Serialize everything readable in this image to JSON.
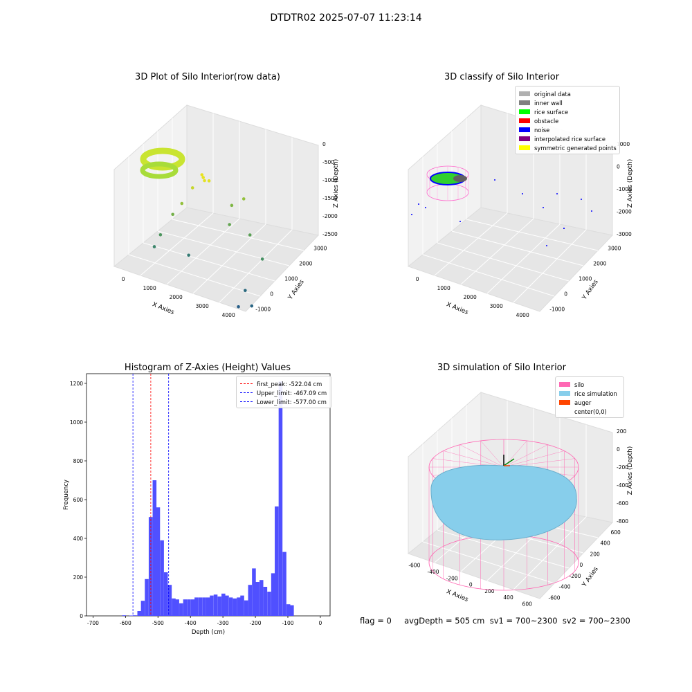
{
  "figure": {
    "suptitle": "DTDTR02 2025-07-07 11:23:14",
    "status_text": "flag = 0     avgDepth = 505 cm  sv1 = 700~2300  sv2 = 700~2300"
  },
  "chart_data": [
    {
      "type": "scatter",
      "subtype": "3d",
      "title": "3D Plot of Silo Interior(row data)",
      "xlabel": "X Axies",
      "ylabel": "Y Axies",
      "zlabel": "Z Axies (Depth)",
      "x_ticks": [
        "0",
        "1000",
        "2000",
        "3000",
        "4000"
      ],
      "y_ticks": [
        "-1000",
        "0",
        "1000",
        "2000",
        "3000"
      ],
      "z_ticks": [
        "0",
        "-500",
        "-1000",
        "-1500",
        "-2000",
        "-2500"
      ],
      "grid": true,
      "colormap": "viridis by depth",
      "points": [
        {
          "x": 1000,
          "y": 1500,
          "z": -60
        },
        {
          "x": 1100,
          "y": 1400,
          "z": -80
        },
        {
          "x": 900,
          "y": 1600,
          "z": -50
        },
        {
          "x": 1200,
          "y": 1500,
          "z": -100
        },
        {
          "x": 800,
          "y": 1200,
          "z": -300
        },
        {
          "x": 600,
          "y": 900,
          "z": -700
        },
        {
          "x": 400,
          "y": 700,
          "z": -1000
        },
        {
          "x": 200,
          "y": 300,
          "z": -1500
        },
        {
          "x": 100,
          "y": 100,
          "z": -1800
        },
        {
          "x": 1700,
          "y": 2000,
          "z": -900
        },
        {
          "x": 2000,
          "y": 2200,
          "z": -700
        },
        {
          "x": 1900,
          "y": 1500,
          "z": -1200
        },
        {
          "x": 2600,
          "y": 1500,
          "z": -1300
        },
        {
          "x": 3100,
          "y": 300,
          "z": -2300
        },
        {
          "x": 3200,
          "y": -300,
          "z": -2500
        },
        {
          "x": 3600,
          "y": -200,
          "z": -2400
        },
        {
          "x": 3300,
          "y": 1000,
          "z": -1600
        },
        {
          "x": 1000,
          "y": 600,
          "z": -2000
        }
      ]
    },
    {
      "type": "scatter",
      "subtype": "3d",
      "title": "3D classify of Silo Interior",
      "xlabel": "X Axies",
      "ylabel": "Y Axies",
      "zlabel": "Z Axies (Depth)",
      "x_ticks": [
        "0",
        "1000",
        "2000",
        "3000",
        "4000"
      ],
      "y_ticks": [
        "-1000",
        "0",
        "1000",
        "2000",
        "3000"
      ],
      "z_ticks": [
        "1000",
        "0",
        "-1000",
        "-2000",
        "-3000"
      ],
      "grid": true,
      "legend_position": "top-right",
      "series": [
        {
          "name": "original data",
          "color": "#b0b0b0"
        },
        {
          "name": "inner wall",
          "color": "#808080"
        },
        {
          "name": "rice surface",
          "color": "#00ff00"
        },
        {
          "name": "obstacle",
          "color": "#ff0000"
        },
        {
          "name": "noise",
          "color": "#0000ff"
        },
        {
          "name": "interpolated rice surface",
          "color": "#800080"
        },
        {
          "name": "symmetric generated points",
          "color": "#ffff00"
        }
      ]
    },
    {
      "type": "bar",
      "subtype": "histogram",
      "title": "Histogram of Z-Axies (Height) Values",
      "xlabel": "Depth (cm)",
      "ylabel": "Frequency",
      "xlim": [
        -720,
        30
      ],
      "ylim": [
        0,
        1250
      ],
      "x_ticks": [
        "-700",
        "-600",
        "-500",
        "-400",
        "-300",
        "-200",
        "-100",
        "0"
      ],
      "y_ticks": [
        "0",
        "200",
        "400",
        "600",
        "800",
        "1000",
        "1200"
      ],
      "bar_color": "#5050ff",
      "bin_width": 11.8,
      "bins": [
        {
          "x": -625,
          "v": 3
        },
        {
          "x": -603,
          "v": 2
        },
        {
          "x": -592,
          "v": 3
        },
        {
          "x": -578,
          "v": 25
        },
        {
          "x": -567,
          "v": 78
        },
        {
          "x": -555,
          "v": 190
        },
        {
          "x": -543,
          "v": 510
        },
        {
          "x": -531,
          "v": 700
        },
        {
          "x": -520,
          "v": 560
        },
        {
          "x": -508,
          "v": 390
        },
        {
          "x": -496,
          "v": 225
        },
        {
          "x": -484,
          "v": 160
        },
        {
          "x": -472,
          "v": 90
        },
        {
          "x": -461,
          "v": 85
        },
        {
          "x": -449,
          "v": 65
        },
        {
          "x": -437,
          "v": 85
        },
        {
          "x": -425,
          "v": 85
        },
        {
          "x": -413,
          "v": 85
        },
        {
          "x": -402,
          "v": 95
        },
        {
          "x": -390,
          "v": 95
        },
        {
          "x": -378,
          "v": 95
        },
        {
          "x": -366,
          "v": 95
        },
        {
          "x": -355,
          "v": 105
        },
        {
          "x": -343,
          "v": 110
        },
        {
          "x": -331,
          "v": 100
        },
        {
          "x": -319,
          "v": 115
        },
        {
          "x": -308,
          "v": 105
        },
        {
          "x": -296,
          "v": 95
        },
        {
          "x": -284,
          "v": 90
        },
        {
          "x": -272,
          "v": 95
        },
        {
          "x": -261,
          "v": 105
        },
        {
          "x": -249,
          "v": 80
        },
        {
          "x": -237,
          "v": 160
        },
        {
          "x": -225,
          "v": 245
        },
        {
          "x": -214,
          "v": 175
        },
        {
          "x": -202,
          "v": 185
        },
        {
          "x": -190,
          "v": 150
        },
        {
          "x": -178,
          "v": 125
        },
        {
          "x": -166,
          "v": 220
        },
        {
          "x": -155,
          "v": 565
        },
        {
          "x": -143,
          "v": 1210
        },
        {
          "x": -131,
          "v": 330
        },
        {
          "x": -119,
          "v": 60
        },
        {
          "x": -108,
          "v": 55
        }
      ],
      "bin_offset_note": "",
      "lines": [
        {
          "label": "first_peak: -522.04 cm",
          "x": -522.04,
          "color": "#ff0000"
        },
        {
          "label": "Upper_limit: -467.09 cm",
          "x": -467.09,
          "color": "#0000ff"
        },
        {
          "label": "Lower_limit: -577.00 cm",
          "x": -577.0,
          "color": "#0000ff"
        }
      ],
      "legend_position": "top-right"
    },
    {
      "type": "scatter",
      "subtype": "3d",
      "title": "3D simulation of Silo Interior",
      "xlabel": "X Axies",
      "ylabel": "Y Axies",
      "zlabel": "Z Axies (Depth)",
      "x_ticks": [
        "-600",
        "-400",
        "-200",
        "0",
        "200",
        "400",
        "600"
      ],
      "y_ticks": [
        "-600",
        "-400",
        "-200",
        "0",
        "200",
        "400",
        "600"
      ],
      "z_ticks": [
        "200",
        "0",
        "-200",
        "-400",
        "-600",
        "-800"
      ],
      "grid": true,
      "legend_position": "top-right",
      "series": [
        {
          "name": "silo",
          "color": "#ff69b4"
        },
        {
          "name": "rice simulation",
          "color": "#87ceeb"
        },
        {
          "name": "auger",
          "color": "#ff4500"
        },
        {
          "name": "center(0,0)",
          "color": "#ffffff"
        }
      ]
    }
  ]
}
